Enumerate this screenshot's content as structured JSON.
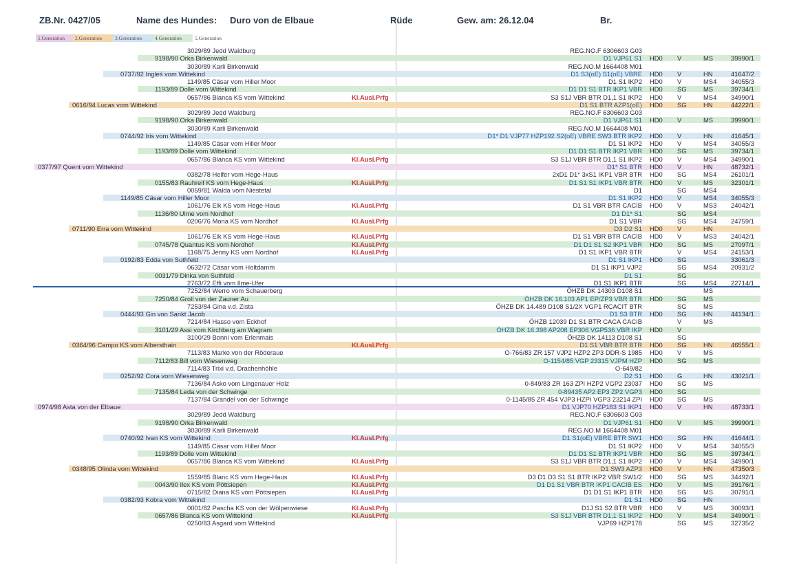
{
  "header": {
    "zb": "ZB.Nr. 0427/05",
    "name_label": "Name des Hundes:",
    "name": "Duro von de  Elbaue",
    "sex": "Rüde",
    "dob": "Gew. am: 26.12.04",
    "color": "Br."
  },
  "legend": [
    "1.Generation",
    "2.Generation",
    "3.Generation",
    "4.Generation",
    "5.Generation"
  ],
  "rows": [
    {
      "g": 5,
      "n": "3029/89 Jedd  Waldburg",
      "t": "REG.NO.F 6306603 G03",
      "h": "",
      "c": "",
      "m": "",
      "z": ""
    },
    {
      "g": 4,
      "n": "9198/90 Orka  Birkenwald",
      "t": "D1 VJP61 S1",
      "h": "HD0",
      "c": "V",
      "m": "MS",
      "z": "39990/1"
    },
    {
      "g": 5,
      "n": "3030/89 Karli  Birkenwald",
      "t": "REG.NO.M 1664408 M01",
      "h": "",
      "c": "",
      "m": "",
      "z": ""
    },
    {
      "g": 3,
      "n": "0737/92 Ingleś vom Wittekind",
      "t": "D1 S3(oE) S1(oE) VBRE",
      "h": "HD0",
      "c": "V",
      "m": "HN",
      "z": "41647/2"
    },
    {
      "g": 5,
      "n": "1149/85 Cäsar vom Hiller Moor",
      "t": "D1 S1 IKP2",
      "h": "HD0",
      "c": "V",
      "m": "MS4",
      "z": "34055/3"
    },
    {
      "g": 4,
      "n": "1193/89 Dolle vom Wittekind",
      "t": "D1 D1 S1 BTR IKP1 VBR",
      "h": "HD0",
      "c": "SG",
      "m": "MS",
      "z": "39734/1"
    },
    {
      "g": 5,
      "n": "0657/86 Blanca KS vom Wittekind",
      "k": "Kl.Ausl.Prfg",
      "t": "S3 S1J VBR BTR D1,1 S1 IKP2",
      "h": "HD0",
      "c": "V",
      "m": "MS4",
      "z": "34990/1"
    },
    {
      "g": 2,
      "n": "0616/94 Lucas vom Wittekind",
      "t": "D1 S1 BTR AZP1(oE)",
      "h": "HD0",
      "c": "SG",
      "m": "HN",
      "z": "44222/1"
    },
    {
      "g": 5,
      "n": "3029/89 Jedd  Waldburg",
      "t": "REG.NO.F 6306603 G03",
      "h": "",
      "c": "",
      "m": "",
      "z": ""
    },
    {
      "g": 4,
      "n": "9198/90 Orka  Birkenwald",
      "t": "D1 VJP61 S1",
      "h": "HD0",
      "c": "V",
      "m": "MS",
      "z": "39990/1"
    },
    {
      "g": 5,
      "n": "3030/89 Karli  Birkenwald",
      "t": "REG.NO.M 1664408 M01",
      "h": "",
      "c": "",
      "m": "",
      "z": ""
    },
    {
      "g": 3,
      "n": "0744/92 Iris vom Wittekind",
      "t": "D1* D1 VJP77 HZP192 S2(oE) VBRE SW3 BTR IKP2",
      "h": "HD0",
      "c": "V",
      "m": "HN",
      "z": "41645/1"
    },
    {
      "g": 5,
      "n": "1149/85 Cäsar vom Hiller Moor",
      "t": "D1 S1 IKP2",
      "h": "HD0",
      "c": "V",
      "m": "MS4",
      "z": "34055/3"
    },
    {
      "g": 4,
      "n": "1193/89 Dolle vom Wittekind",
      "t": "D1 D1 S1 BTR IKP1 VBR",
      "h": "HD0",
      "c": "SG",
      "m": "MS",
      "z": "39734/1"
    },
    {
      "g": 5,
      "n": "0657/86 Blanca KS vom Wittekind",
      "k": "Kl.Ausl.Prfg",
      "t": "S3 S1J VBR BTR D1,1 S1 IKP2",
      "h": "HD0",
      "c": "V",
      "m": "MS4",
      "z": "34990/1"
    },
    {
      "g": 1,
      "n": "0377/97 Quent vom Wittekind",
      "t": "D1* S1 BTR",
      "h": "HD0",
      "c": "V",
      "m": "HN",
      "z": "48732/1"
    },
    {
      "g": 5,
      "n": "0382/78 Helfer vom Hege-Haus",
      "t": "2xD1 D1* 3xS1 IKP1 VBR BTR",
      "h": "HD0",
      "c": "SG",
      "m": "MS4",
      "z": "26101/1"
    },
    {
      "g": 4,
      "n": "0155/83 Rauhreif KS vom Hege-Haus",
      "k": "Kl.Ausl.Prfg",
      "t": "D1 S1 S1 IKP1 VBR BTR",
      "h": "HD0",
      "c": "V",
      "m": "MS",
      "z": "32301/1"
    },
    {
      "g": 5,
      "n": "0059/81 Walda vom Niestetal",
      "t": "D1",
      "h": "",
      "c": "SG",
      "m": "MS4",
      "z": ""
    },
    {
      "g": 3,
      "n": "1149/85 Cäsar vom Hiller Moor",
      "t": "D1 S1 IKP2",
      "h": "HD0",
      "c": "V",
      "m": "MS4",
      "z": "34055/3"
    },
    {
      "g": 5,
      "n": "1061/76 Elk KS vom Hege-Haus",
      "k": "Kl.Ausl.Prfg",
      "t": "D1 S1 VBR BTR CACIB",
      "h": "HD0",
      "c": "V",
      "m": "MS3",
      "z": "24042/1"
    },
    {
      "g": 4,
      "n": "1136/80 Ulme vom Nordhof",
      "t": "D1 D1* S1",
      "h": "",
      "c": "SG",
      "m": "MS4",
      "z": ""
    },
    {
      "g": 5,
      "n": "0206/76 Mona KS vom Nordhof",
      "k": "Kl.Ausl.Prfg",
      "t": "D1 S1 VBR",
      "h": "",
      "c": "SG",
      "m": "MS4",
      "z": "24759/1"
    },
    {
      "g": 2,
      "n": "0711/90 Erra vom Wittekind",
      "t": "D3 D2 S1",
      "h": "HD0",
      "c": "V",
      "m": "HN",
      "z": ""
    },
    {
      "g": 5,
      "n": "1061/76 Elk KS vom Hege-Haus",
      "k": "Kl.Ausl.Prfg",
      "t": "D1 S1 VBR BTR CACIB",
      "h": "HD0",
      "c": "V",
      "m": "MS3",
      "z": "24042/1"
    },
    {
      "g": 4,
      "n": "0745/78 Quantus KS vom Nordhof",
      "k": "Kl.Ausl.Prfg",
      "t": "D1 D1 S1 S2 IKP1 VBR",
      "h": "HD0",
      "c": "SG",
      "m": "MS",
      "z": "27097/1"
    },
    {
      "g": 5,
      "n": "1168/75 Jenny KS vom Nordhof",
      "k": "Kl.Ausl.Prfg",
      "t": "D1 S1 IKP1 VBR BTR",
      "h": "",
      "c": "V",
      "m": "MS4",
      "z": "24153/1"
    },
    {
      "g": 3,
      "n": "0192/83 Edda von Suthfeld",
      "t": "D1 S1 IKP1",
      "h": "HD0",
      "c": "SG",
      "m": "",
      "z": "33061/3"
    },
    {
      "g": 5,
      "n": "0632/72 Cäsar vom Holtdamm",
      "t": "D1 S1 IKP1 VJP2",
      "h": "",
      "c": "SG",
      "m": "MS4",
      "z": "20931/2"
    },
    {
      "g": 4,
      "n": "0031/79 Dinka von Suthfeld",
      "t": "D1 S1",
      "h": "",
      "c": "SG",
      "m": "",
      "z": ""
    },
    {
      "g": 5,
      "n": "2763/72 Effi vom Ilme-Ufer",
      "t": "D1 S1 IKP1 BTR",
      "h": "",
      "c": "SG",
      "m": "MS4",
      "z": "22714/1"
    },
    {
      "g": 5,
      "n": "7252/84 Werro vom Schauerberg",
      "t": "ÖHZB DK 14303 D108 S1",
      "h": "",
      "c": "",
      "m": "MS",
      "z": ""
    },
    {
      "g": 4,
      "n": "7250/84 Groll von der Zauner Au",
      "t": "ÖHZB DK 16.103 AP1 EP/ZP3 VBR BTR",
      "h": "HD0",
      "c": "SG",
      "m": "MS",
      "z": ""
    },
    {
      "g": 5,
      "n": "7253/84 Gina v.d. Zista",
      "t": "ÖHZB DK 14.489 D108 S1/2X VGP1 RCACIT BTR",
      "h": "",
      "c": "SG",
      "m": "MS",
      "z": ""
    },
    {
      "g": 3,
      "n": "0444/93 Gin von Sankt Jacob",
      "t": "D1 S3 BTR",
      "h": "HD0",
      "c": "SG",
      "m": "HN",
      "z": "44134/1"
    },
    {
      "g": 5,
      "n": "7214/84 Hasso vom Eckhof",
      "t": "ÖHZB 12039 D1 S1 BTR CACA CACIB",
      "h": "",
      "c": "V",
      "m": "MS",
      "z": ""
    },
    {
      "g": 4,
      "n": "3101/29 Assi vom Kirchberg am Wagram",
      "t": "ÖHZB DK 16.398 AP208 EP306 VGP536 VBR IKP",
      "h": "HD0",
      "c": "V",
      "m": "",
      "z": ""
    },
    {
      "g": 5,
      "n": "3100/29 Bonni vom Erlenmais",
      "t": "ÖHZB DK 14113 D108 S1",
      "h": "",
      "c": "SG",
      "m": "",
      "z": ""
    },
    {
      "g": 2,
      "n": "0364/96 Campo KS vom Albersthain",
      "k": "Kl.Ausl.Prfg",
      "t": "D1 S1 VBR BTR BTR",
      "h": "HD0",
      "c": "SG",
      "m": "HN",
      "z": "46555/1"
    },
    {
      "g": 5,
      "n": "7113/83 Marko von der Röderaue",
      "t": "O-766/83 ZR 157 VJP2 HZP2 ZP3 DDR-S 1985",
      "h": "HD0",
      "c": "V",
      "m": "MS",
      "z": ""
    },
    {
      "g": 4,
      "n": "7112/83 Bill vom Wiesenweg",
      "t": "O-1154/85  VGP 23315 VJPM HZP",
      "h": "HD0",
      "c": "SG",
      "m": "MS",
      "z": ""
    },
    {
      "g": 5,
      "n": "7114/83 Trixi v.d. Drachenhöhle",
      "t": "O-649/82",
      "h": "",
      "c": "",
      "m": "",
      "z": ""
    },
    {
      "g": 3,
      "n": "0252/92 Cora vom Wiesenweg",
      "t": "D2 S1",
      "h": "HD0",
      "c": "G",
      "m": "HN",
      "z": "43021/1"
    },
    {
      "g": 5,
      "n": "7136/84 Asko vom Lingenauer Holz",
      "t": "0-849/83 ZR 163 ZPI HZP2 VGP2 23037",
      "h": "HD0",
      "c": "SG",
      "m": "MS",
      "z": ""
    },
    {
      "g": 4,
      "n": "7135/84 Leda von der Schwinge",
      "t": "0-89435 AP2 EP3 ZP2 VGP3",
      "h": "HD0",
      "c": "SG",
      "m": "",
      "z": ""
    },
    {
      "g": 5,
      "n": "7137/84 Grandel von der Schwinge",
      "t": "0-1145/85 ZR 454 VJP3 HZPI VGP3 23214 ZPI",
      "h": "HD0",
      "c": "SG",
      "m": "MS",
      "z": ""
    },
    {
      "g": 1,
      "n": "0974/98 Asta von der Elbaue",
      "t": "D1 VJP70 HZP183 S1 IKP1",
      "h": "HD0",
      "c": "V",
      "m": "HN",
      "z": "48733/1"
    },
    {
      "g": 5,
      "n": "3029/89 Jedd  Waldburg",
      "t": "REG.NO.F 6306603 G03",
      "h": "",
      "c": "",
      "m": "",
      "z": ""
    },
    {
      "g": 4,
      "n": "9198/90 Orka  Birkenwald",
      "t": "D1 VJP61 S1",
      "h": "HD0",
      "c": "V",
      "m": "MS",
      "z": "39990/1"
    },
    {
      "g": 5,
      "n": "3030/89 Karli  Birkenwald",
      "t": "REG.NO.M 1664408 M01",
      "h": "",
      "c": "",
      "m": "",
      "z": ""
    },
    {
      "g": 3,
      "n": "0740/92 Ivan KS vom Wittekind",
      "k": "Kl.Ausl.Prfg",
      "t": "D1 S1(oE) VBRE BTR SW1",
      "h": "HD0",
      "c": "SG",
      "m": "HN",
      "z": "41644/1"
    },
    {
      "g": 5,
      "n": "1149/85 Cäsar vom Hiller Moor",
      "t": "D1 S1 IKP2",
      "h": "HD0",
      "c": "V",
      "m": "MS4",
      "z": "34055/3"
    },
    {
      "g": 4,
      "n": "1193/89 Dolle vom Wittekind",
      "t": "D1 D1 S1 BTR IKP1 VBR",
      "h": "HD0",
      "c": "SG",
      "m": "MS",
      "z": "39734/1"
    },
    {
      "g": 5,
      "n": "0657/86 Blanca KS vom Wittekind",
      "k": "Kl.Ausl.Prfg",
      "t": "S3 S1J VBR BTR D1,1 S1 IKP2",
      "h": "HD0",
      "c": "V",
      "m": "MS4",
      "z": "34990/1"
    },
    {
      "g": 2,
      "n": "0348/95 Olinda vom Wittekind",
      "t": "D1 SW3 AZP3",
      "h": "HD0",
      "c": "V",
      "m": "HN",
      "z": "47350/3"
    },
    {
      "g": 5,
      "n": "1559/85 Blanc KS vom Hege-Haus",
      "k": "Kl.Ausl.Prfg",
      "t": "D3 D1 D3 S1 S1 BTR IKP2 VBR SW1/2",
      "h": "HD0",
      "c": "SG",
      "m": "MS",
      "z": "34492/1"
    },
    {
      "g": 4,
      "n": "0043/90 Ilex KS vom Pöttsiepen",
      "k": "Kl.Ausl.Prfg",
      "t": "D1 D1 S1 VBR BTR IKP1 CACIB ES",
      "h": "HD0",
      "c": "V",
      "m": "MS",
      "z": "39176/1"
    },
    {
      "g": 5,
      "n": "0715/82 Diana KS vom Pöttsiepen",
      "k": "Kl.Ausl.Prfg",
      "t": "D1 D1 S1 IKP1 BTR",
      "h": "HD0",
      "c": "SG",
      "m": "MS",
      "z": "30791/1"
    },
    {
      "g": 3,
      "n": "0382/93 Kobra vom Wittekind",
      "t": "D1 S1",
      "h": "HD0",
      "c": "SG",
      "m": "HN",
      "z": ""
    },
    {
      "g": 5,
      "n": "0001/82 Pascha KS von der Wölpenwiese",
      "k": "Kl.Ausl.Prfg",
      "t": "D1J S1 S2 BTR VBR",
      "h": "HD0",
      "c": "V",
      "m": "MS",
      "z": "30093/1"
    },
    {
      "g": 4,
      "n": "0657/86 Blanca KS vom Wittekind",
      "k": "Kl.Ausl.Prfg",
      "t": "S3 S1J VBR BTR D1,1 S1 IKP2",
      "h": "HD0",
      "c": "V",
      "m": "MS4",
      "z": "34990/1"
    },
    {
      "g": 5,
      "n": "0250/83 Asgard vom Wittekind",
      "t": "VJP69 HZP178",
      "h": "",
      "c": "SG",
      "m": "MS",
      "z": "32735/2"
    }
  ]
}
